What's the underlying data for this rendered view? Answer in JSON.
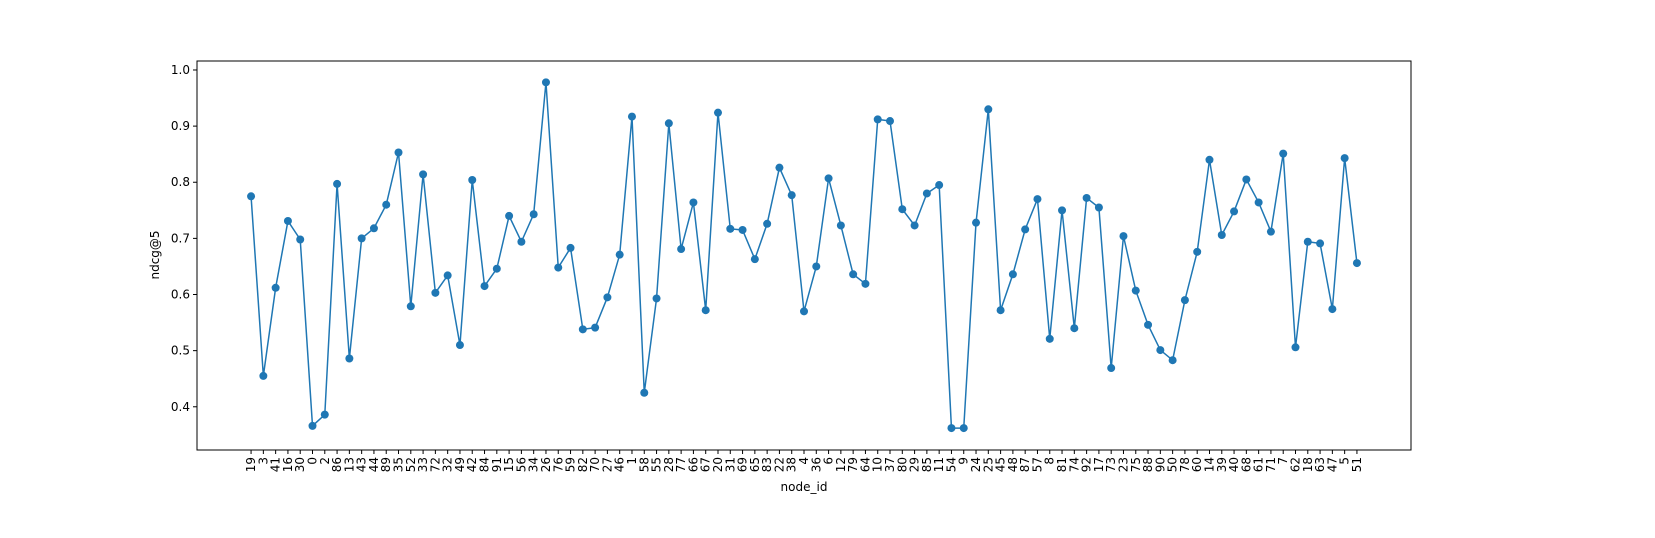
{
  "chart_data": {
    "type": "line",
    "xlabel": "node_id",
    "ylabel": "ndcg@5",
    "color": "#1f77b4",
    "marker": "circle",
    "categories": [
      "19",
      "3",
      "41",
      "16",
      "30",
      "0",
      "2",
      "86",
      "13",
      "43",
      "44",
      "89",
      "35",
      "52",
      "33",
      "72",
      "32",
      "49",
      "42",
      "84",
      "91",
      "15",
      "56",
      "34",
      "26",
      "76",
      "59",
      "82",
      "70",
      "27",
      "46",
      "1",
      "58",
      "55",
      "28",
      "77",
      "66",
      "67",
      "20",
      "31",
      "69",
      "65",
      "83",
      "22",
      "38",
      "4",
      "36",
      "6",
      "12",
      "79",
      "64",
      "10",
      "37",
      "80",
      "29",
      "85",
      "11",
      "54",
      "9",
      "24",
      "25",
      "45",
      "48",
      "87",
      "57",
      "8",
      "81",
      "74",
      "92",
      "17",
      "73",
      "23",
      "75",
      "88",
      "90",
      "50",
      "78",
      "60",
      "14",
      "39",
      "40",
      "68",
      "61",
      "71",
      "7",
      "62",
      "18",
      "63",
      "47",
      "5",
      "51"
    ],
    "series": [
      {
        "name": "ndcg@5",
        "color": "#1f77b4",
        "values": [
          0.775,
          0.455,
          0.612,
          0.731,
          0.698,
          0.366,
          0.386,
          0.797,
          0.486,
          0.7,
          0.718,
          0.76,
          0.853,
          0.579,
          0.814,
          0.603,
          0.634,
          0.51,
          0.804,
          0.615,
          0.646,
          0.74,
          0.694,
          0.743,
          0.978,
          0.648,
          0.683,
          0.538,
          0.541,
          0.595,
          0.671,
          0.917,
          0.425,
          0.593,
          0.905,
          0.681,
          0.764,
          0.572,
          0.924,
          0.717,
          0.715,
          0.663,
          0.726,
          0.826,
          0.777,
          0.57,
          0.65,
          0.807,
          0.723,
          0.636,
          0.619,
          0.912,
          0.909,
          0.752,
          0.723,
          0.78,
          0.795,
          0.362,
          0.362,
          0.728,
          0.93,
          0.572,
          0.636,
          0.716,
          0.77,
          0.521,
          0.75,
          0.54,
          0.772,
          0.755,
          0.469,
          0.704,
          0.607,
          0.546,
          0.501,
          0.483,
          0.59,
          0.676,
          0.84,
          0.706,
          0.748,
          0.805,
          0.764,
          0.712,
          0.851,
          0.506,
          0.694,
          0.691,
          0.574,
          0.843,
          0.656
        ]
      }
    ],
    "ylim": [
      0.323,
      1.016
    ],
    "yticks": [
      0.4,
      0.5,
      0.6,
      0.7,
      0.8,
      0.9,
      {
        "value": 1,
        "label": "1.0"
      }
    ],
    "grid": false
  }
}
